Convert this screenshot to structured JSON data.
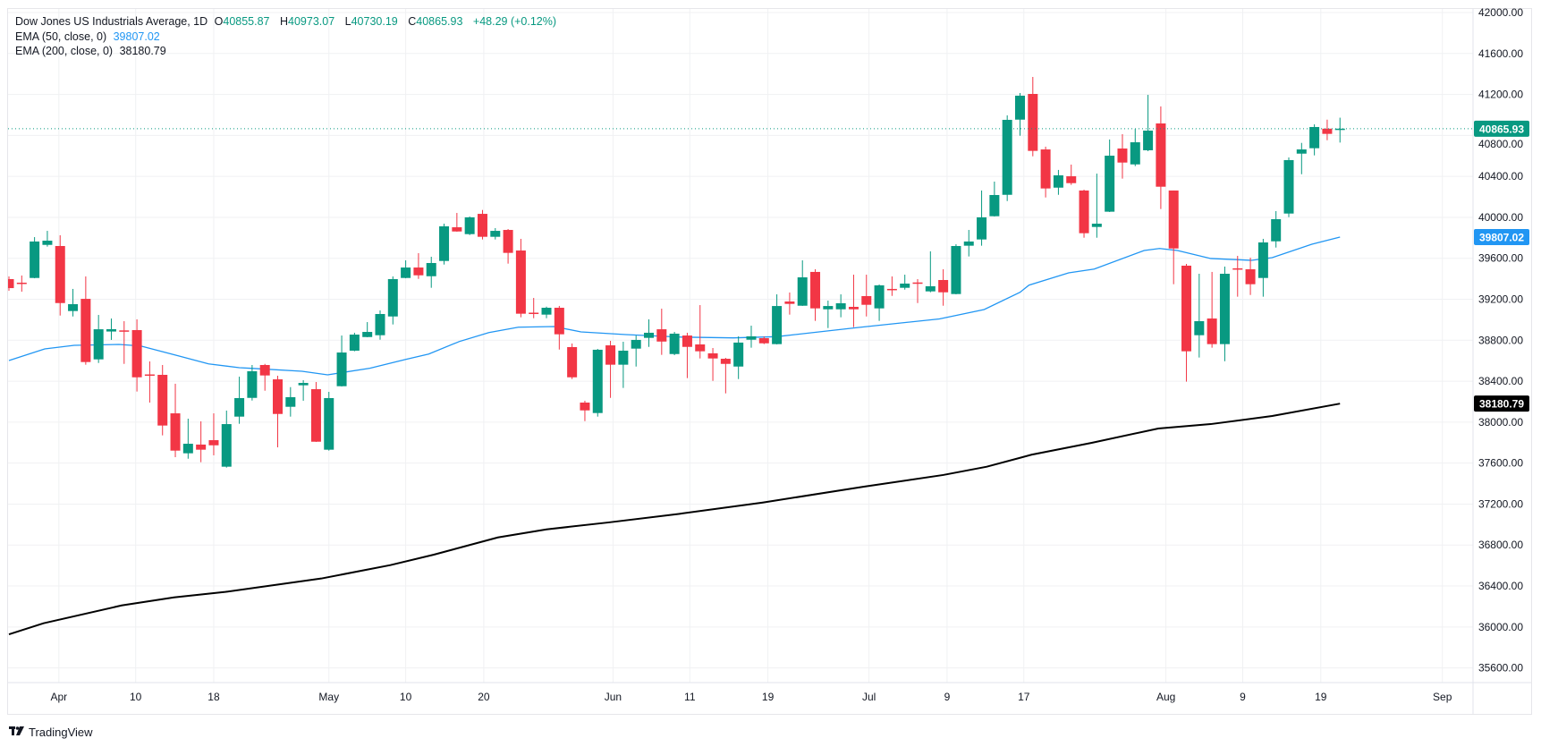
{
  "header": {
    "symbol": "Dow Jones US Industrials Average, 1D",
    "o_label": "O",
    "o_value": "40855.87",
    "h_label": "H",
    "h_value": "40973.07",
    "l_label": "L",
    "l_value": "40730.19",
    "c_label": "C",
    "c_value": "40865.93",
    "change": "+48.29 (+0.12%)",
    "ema50_label": "EMA (50, close, 0)",
    "ema50_value": "39807.02",
    "ema200_label": "EMA (200, close, 0)",
    "ema200_value": "38180.79"
  },
  "branding": {
    "logo_text": "TradingView",
    "logo_icon": "tradingview-logo-icon"
  },
  "colors": {
    "up": "#089981",
    "down": "#f23645",
    "ema50": "#2196f3",
    "ema200": "#000000",
    "grid": "#f0f1f3"
  },
  "chart_data": {
    "type": "candlestick",
    "title": "Dow Jones US Industrials Average, 1D",
    "ylim": [
      35400,
      42050
    ],
    "y_ticks": [
      "42000.00",
      "41600.00",
      "41200.00",
      "40800.00",
      "40400.00",
      "40000.00",
      "39600.00",
      "39200.00",
      "38800.00",
      "38400.00",
      "38000.00",
      "37600.00",
      "37200.00",
      "36800.00",
      "36400.00",
      "36000.00",
      "35600.00"
    ],
    "x_ticks": [
      {
        "label": "Apr",
        "index": 3.9
      },
      {
        "label": "10",
        "index": 9.9
      },
      {
        "label": "18",
        "index": 16
      },
      {
        "label": "May",
        "index": 25
      },
      {
        "label": "10",
        "index": 31
      },
      {
        "label": "20",
        "index": 37.1
      },
      {
        "label": "Jun",
        "index": 47.2
      },
      {
        "label": "11",
        "index": 53.2
      },
      {
        "label": "19",
        "index": 59.3
      },
      {
        "label": "Jul",
        "index": 67.2
      },
      {
        "label": "9",
        "index": 73.3
      },
      {
        "label": "17",
        "index": 79.3
      },
      {
        "label": "Aug",
        "index": 90.4
      },
      {
        "label": "9",
        "index": 96.4
      },
      {
        "label": "19",
        "index": 102.5
      },
      {
        "label": "Sep",
        "index": 112
      }
    ],
    "ohlc_fields": [
      "open",
      "high",
      "low",
      "close"
    ],
    "candles": [
      [
        39397,
        39423,
        39283,
        39309
      ],
      [
        39362,
        39432,
        39274,
        39349
      ],
      [
        39408,
        39807,
        39405,
        39764
      ],
      [
        39731,
        39868,
        39714,
        39772
      ],
      [
        39720,
        39825,
        39041,
        39163
      ],
      [
        39085,
        39301,
        39032,
        39152
      ],
      [
        39204,
        39423,
        38561,
        38587
      ],
      [
        38613,
        39047,
        38578,
        38907
      ],
      [
        38885,
        39012,
        38803,
        38908
      ],
      [
        38896,
        38986,
        38569,
        38884
      ],
      [
        38899,
        39004,
        38299,
        38438
      ],
      [
        38466,
        38593,
        38191,
        38453
      ],
      [
        38462,
        38558,
        37871,
        37967
      ],
      [
        38086,
        38375,
        37658,
        37722
      ],
      [
        37696,
        38034,
        37643,
        37789
      ],
      [
        37781,
        38008,
        37609,
        37731
      ],
      [
        37824,
        38086,
        37676,
        37774
      ],
      [
        37565,
        38113,
        37556,
        37981
      ],
      [
        38054,
        38444,
        37984,
        38235
      ],
      [
        38237,
        38558,
        38211,
        38497
      ],
      [
        38558,
        38569,
        38307,
        38456
      ],
      [
        38418,
        38453,
        37754,
        38080
      ],
      [
        38150,
        38342,
        38054,
        38244
      ],
      [
        38360,
        38410,
        38209,
        38383
      ],
      [
        38322,
        38392,
        37807,
        37809
      ],
      [
        37731,
        38296,
        37722,
        38235
      ],
      [
        38351,
        38846,
        38348,
        38680
      ],
      [
        38698,
        38873,
        38692,
        38855
      ],
      [
        38831,
        38977,
        38829,
        38881
      ],
      [
        38849,
        39091,
        38805,
        39056
      ],
      [
        39032,
        39423,
        38954,
        39397
      ],
      [
        39408,
        39580,
        39405,
        39510
      ],
      [
        39510,
        39650,
        39399,
        39434
      ],
      [
        39425,
        39615,
        39312,
        39554
      ],
      [
        39574,
        39938,
        39539,
        39912
      ],
      [
        39903,
        40043,
        39860,
        39862
      ],
      [
        39836,
        40008,
        39827,
        40000
      ],
      [
        40034,
        40072,
        39784,
        39810
      ],
      [
        39810,
        39895,
        39784,
        39868
      ],
      [
        39877,
        39886,
        39548,
        39653
      ],
      [
        39676,
        39790,
        39024,
        39059
      ],
      [
        39069,
        39213,
        39015,
        39060
      ],
      [
        39050,
        39128,
        39015,
        39117
      ],
      [
        39117,
        39135,
        38709,
        38858
      ],
      [
        38733,
        38768,
        38421,
        38438
      ],
      [
        38191,
        38209,
        38010,
        38115
      ],
      [
        38089,
        38715,
        38054,
        38707
      ],
      [
        38750,
        38794,
        38237,
        38561
      ],
      [
        38561,
        38785,
        38334,
        38698
      ],
      [
        38718,
        38846,
        38543,
        38803
      ],
      [
        38823,
        39004,
        38735,
        38873
      ],
      [
        38907,
        39108,
        38657,
        38787
      ],
      [
        38665,
        38881,
        38654,
        38864
      ],
      [
        38846,
        38873,
        38430,
        38735
      ],
      [
        38759,
        39143,
        38622,
        38692
      ],
      [
        38672,
        38724,
        38403,
        38622
      ],
      [
        38619,
        38628,
        38281,
        38569
      ],
      [
        38543,
        38838,
        38421,
        38777
      ],
      [
        38805,
        38942,
        38727,
        38838
      ],
      [
        38820,
        38838,
        38762,
        38770
      ],
      [
        38762,
        39248,
        38759,
        39134
      ],
      [
        39178,
        39266,
        39050,
        39155
      ],
      [
        39137,
        39580,
        39135,
        39414
      ],
      [
        39467,
        39493,
        38989,
        39111
      ],
      [
        39102,
        39187,
        38919,
        39134
      ],
      [
        39102,
        39248,
        39024,
        39161
      ],
      [
        39126,
        39440,
        38928,
        39102
      ],
      [
        39231,
        39440,
        39032,
        39146
      ],
      [
        39111,
        39344,
        38989,
        39336
      ],
      [
        39301,
        39423,
        39233,
        39292
      ],
      [
        39312,
        39440,
        39294,
        39353
      ],
      [
        39364,
        39397,
        39163,
        39353
      ],
      [
        39277,
        39668,
        39268,
        39327
      ],
      [
        39388,
        39493,
        39137,
        39268
      ],
      [
        39251,
        39737,
        39248,
        39720
      ],
      [
        39723,
        39877,
        39618,
        39764
      ],
      [
        39784,
        40262,
        39723,
        40000
      ],
      [
        40011,
        40349,
        40008,
        40218
      ],
      [
        40220,
        40996,
        40159,
        40952
      ],
      [
        40954,
        41214,
        40797,
        41188
      ],
      [
        41205,
        41371,
        40596,
        40649
      ],
      [
        40663,
        40690,
        40194,
        40282
      ],
      [
        40290,
        40463,
        40220,
        40410
      ],
      [
        40401,
        40515,
        40317,
        40334
      ],
      [
        40262,
        40270,
        39801,
        39845
      ],
      [
        39906,
        40427,
        39801,
        39938
      ],
      [
        40055,
        40760,
        40052,
        40602
      ],
      [
        40672,
        40812,
        40378,
        40535
      ],
      [
        40517,
        40864,
        40500,
        40733
      ],
      [
        40655,
        41196,
        40646,
        40847
      ],
      [
        40917,
        41083,
        40081,
        40299
      ],
      [
        40262,
        40262,
        39347,
        39696
      ],
      [
        39528,
        39545,
        38395,
        38692
      ],
      [
        38849,
        39449,
        38631,
        38986
      ],
      [
        39012,
        39467,
        38727,
        38762
      ],
      [
        38762,
        39519,
        38595,
        39449
      ],
      [
        39502,
        39624,
        39225,
        39495
      ],
      [
        39493,
        39606,
        39242,
        39347
      ],
      [
        39408,
        39790,
        39225,
        39755
      ],
      [
        39766,
        40061,
        39705,
        39982
      ],
      [
        40037,
        40585,
        40002,
        40559
      ],
      [
        40622,
        40727,
        40421,
        40663
      ],
      [
        40675,
        40908,
        40605,
        40882
      ],
      [
        40866,
        40954,
        40753,
        40815
      ],
      [
        40855.87,
        40973.07,
        40730.19,
        40865.93
      ]
    ],
    "series": [
      {
        "name": "EMA (50, close, 0)",
        "last": "39807.02",
        "points": [
          [
            0,
            38602
          ],
          [
            2.8,
            38715
          ],
          [
            5.1,
            38750
          ],
          [
            8.6,
            38759
          ],
          [
            10.3,
            38744
          ],
          [
            13.3,
            38645
          ],
          [
            15.6,
            38569
          ],
          [
            18,
            38532
          ],
          [
            18.9,
            38526
          ],
          [
            22.9,
            38497
          ],
          [
            24.9,
            38462
          ],
          [
            28.2,
            38526
          ],
          [
            31,
            38613
          ],
          [
            32.8,
            38665
          ],
          [
            35.2,
            38788
          ],
          [
            37.5,
            38875
          ],
          [
            39.8,
            38927
          ],
          [
            42.6,
            38934
          ],
          [
            44.7,
            38881
          ],
          [
            48.2,
            38855
          ],
          [
            52.4,
            38831
          ],
          [
            56.6,
            38823
          ],
          [
            60,
            38835
          ],
          [
            66.4,
            38925
          ],
          [
            72.7,
            39008
          ],
          [
            76.2,
            39100
          ],
          [
            79,
            39268
          ],
          [
            79.7,
            39338
          ],
          [
            82.8,
            39458
          ],
          [
            84.8,
            39495
          ],
          [
            88.7,
            39676
          ],
          [
            89.9,
            39696
          ],
          [
            91.3,
            39676
          ],
          [
            93.9,
            39598
          ],
          [
            97.1,
            39580
          ],
          [
            98.7,
            39606
          ],
          [
            101.8,
            39737
          ],
          [
            104,
            39807.02
          ]
        ]
      },
      {
        "name": "EMA (200, close, 0)",
        "last": "38180.79",
        "points": [
          [
            0,
            35928
          ],
          [
            2.7,
            36036
          ],
          [
            8.8,
            36210
          ],
          [
            12.9,
            36289
          ],
          [
            16.9,
            36342
          ],
          [
            24.4,
            36473
          ],
          [
            29.8,
            36604
          ],
          [
            33.2,
            36706
          ],
          [
            38.2,
            36874
          ],
          [
            42,
            36953
          ],
          [
            46.8,
            37020
          ],
          [
            52.4,
            37105
          ],
          [
            58.9,
            37215
          ],
          [
            66.8,
            37370
          ],
          [
            73,
            37484
          ],
          [
            76.4,
            37565
          ],
          [
            79.9,
            37682
          ],
          [
            84.6,
            37798
          ],
          [
            89.8,
            37938
          ],
          [
            93.9,
            37981
          ],
          [
            98.7,
            38060
          ],
          [
            104,
            38180.79
          ]
        ]
      }
    ],
    "last_price": "40865.93",
    "grid": true,
    "legend_placement": "top-left"
  }
}
